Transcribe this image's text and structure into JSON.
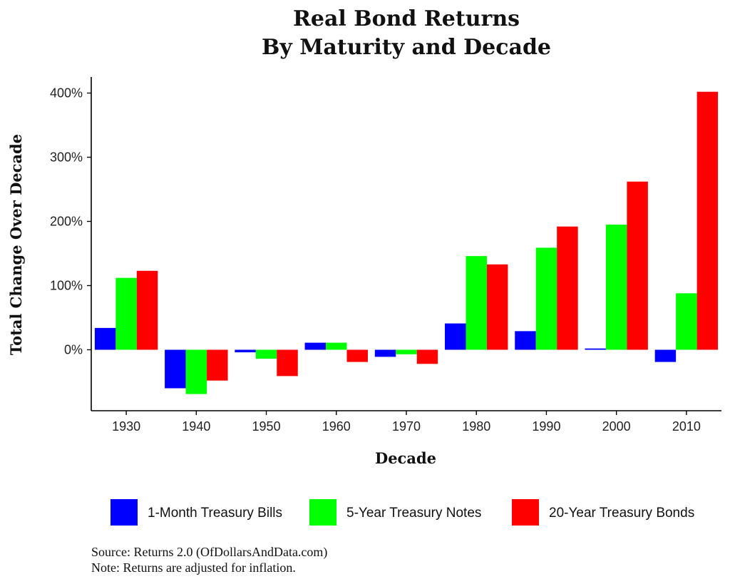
{
  "chart_data": {
    "type": "bar",
    "title": [
      "Real Bond Returns",
      "By Maturity and Decade"
    ],
    "xlabel": "Decade",
    "ylabel": "Total Change Over Decade",
    "categories": [
      "1930",
      "1940",
      "1950",
      "1960",
      "1970",
      "1980",
      "1990",
      "2000",
      "2010"
    ],
    "yticks": [
      0,
      100,
      200,
      300,
      400
    ],
    "ytick_labels": [
      "0%",
      "100%",
      "200%",
      "300%",
      "400%"
    ],
    "ylim": [
      -95,
      425
    ],
    "grid": false,
    "legend_position": "bottom",
    "series": [
      {
        "name": "1-Month Treasury Bills",
        "color": "#0000ff",
        "values": [
          34,
          -60,
          -4,
          11,
          -11,
          41,
          29,
          2,
          -19
        ]
      },
      {
        "name": "5-Year Treasury Notes",
        "color": "#00ff00",
        "values": [
          112,
          -69,
          -14,
          11,
          -7,
          146,
          159,
          195,
          88
        ]
      },
      {
        "name": "20-Year Treasury Bonds",
        "color": "#ff0000",
        "values": [
          123,
          -48,
          -41,
          -19,
          -22,
          133,
          192,
          262,
          402
        ]
      }
    ]
  },
  "caption": {
    "source": "Source: Returns 2.0 (OfDollarsAndData.com)",
    "note": "Note: Returns are adjusted for inflation."
  }
}
